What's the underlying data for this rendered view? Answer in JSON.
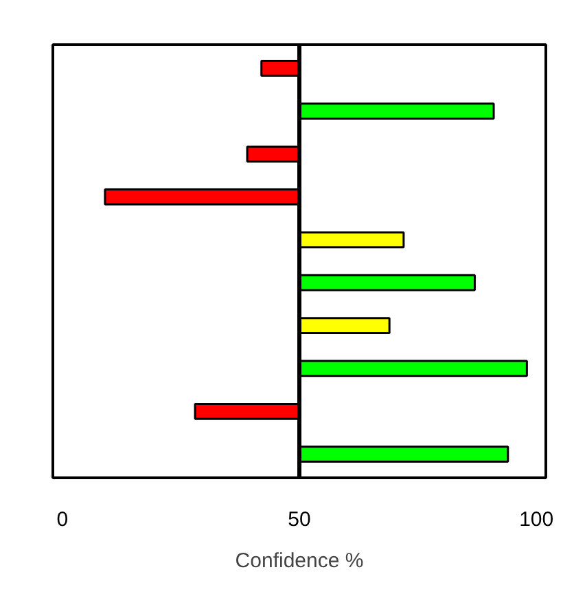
{
  "chart_data": {
    "type": "bar",
    "orientation": "horizontal",
    "xlabel": "Confidence %",
    "categories": [
      null,
      null,
      null,
      null,
      null,
      null,
      null,
      null,
      null,
      null
    ],
    "base": [
      50,
      50,
      50,
      50,
      50,
      50,
      50,
      50,
      50,
      50
    ],
    "values": [
      -8,
      41,
      -11,
      -41,
      22,
      37,
      19,
      48,
      -22,
      44
    ],
    "colors": [
      "#ff0000",
      "#00ff00",
      "#ff0000",
      "#ff0000",
      "#ffff00",
      "#00ff00",
      "#ffff00",
      "#00ff00",
      "#ff0000",
      "#00ff00"
    ],
    "xlim": [
      -2,
      102
    ],
    "xticks": [
      0,
      50,
      100
    ],
    "ref_lines": [
      {
        "axis": "x",
        "value": 50,
        "label": null
      }
    ],
    "tick_labels": "x",
    "grid": false
  }
}
